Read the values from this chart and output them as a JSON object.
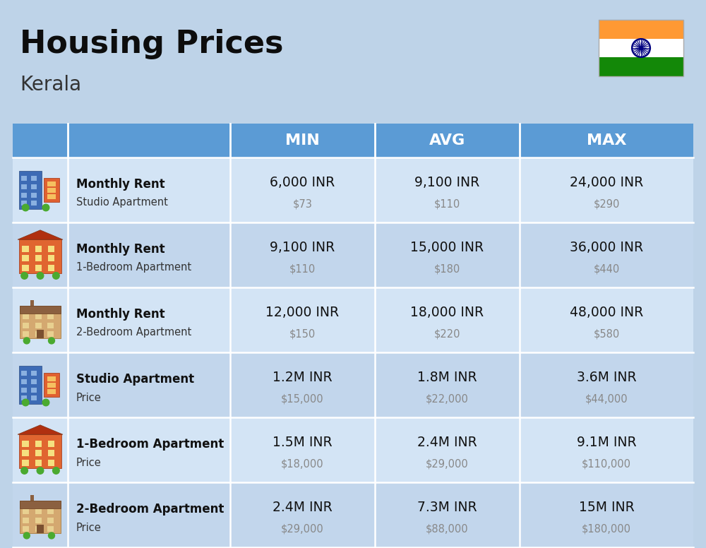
{
  "title": "Housing Prices",
  "subtitle": "Kerala",
  "bg_color": "#bed3e8",
  "header_bg": "#5b9bd5",
  "header_text_color": "#ffffff",
  "row_bg_even": "#d3e4f5",
  "row_bg_odd": "#c2d6ec",
  "divider_color": "#ffffff",
  "col_headers": [
    "MIN",
    "AVG",
    "MAX"
  ],
  "rows": [
    {
      "label_bold": "Monthly Rent",
      "label_sub": "Studio Apartment",
      "min_inr": "6,000 INR",
      "min_usd": "$73",
      "avg_inr": "9,100 INR",
      "avg_usd": "$110",
      "max_inr": "24,000 INR",
      "max_usd": "$290",
      "icon_type": "studio_blue"
    },
    {
      "label_bold": "Monthly Rent",
      "label_sub": "1-Bedroom Apartment",
      "min_inr": "9,100 INR",
      "min_usd": "$110",
      "avg_inr": "15,000 INR",
      "avg_usd": "$180",
      "max_inr": "36,000 INR",
      "max_usd": "$440",
      "icon_type": "bedroom1_orange"
    },
    {
      "label_bold": "Monthly Rent",
      "label_sub": "2-Bedroom Apartment",
      "min_inr": "12,000 INR",
      "min_usd": "$150",
      "avg_inr": "18,000 INR",
      "avg_usd": "$220",
      "max_inr": "48,000 INR",
      "max_usd": "$580",
      "icon_type": "bedroom2_tan"
    },
    {
      "label_bold": "Studio Apartment",
      "label_sub": "Price",
      "min_inr": "1.2M INR",
      "min_usd": "$15,000",
      "avg_inr": "1.8M INR",
      "avg_usd": "$22,000",
      "max_inr": "3.6M INR",
      "max_usd": "$44,000",
      "icon_type": "studio_blue"
    },
    {
      "label_bold": "1-Bedroom Apartment",
      "label_sub": "Price",
      "min_inr": "1.5M INR",
      "min_usd": "$18,000",
      "avg_inr": "2.4M INR",
      "avg_usd": "$29,000",
      "max_inr": "9.1M INR",
      "max_usd": "$110,000",
      "icon_type": "bedroom1_orange"
    },
    {
      "label_bold": "2-Bedroom Apartment",
      "label_sub": "Price",
      "min_inr": "2.4M INR",
      "min_usd": "$29,000",
      "avg_inr": "7.3M INR",
      "avg_usd": "$88,000",
      "max_inr": "15M INR",
      "max_usd": "$180,000",
      "icon_type": "bedroom2_tan"
    }
  ]
}
